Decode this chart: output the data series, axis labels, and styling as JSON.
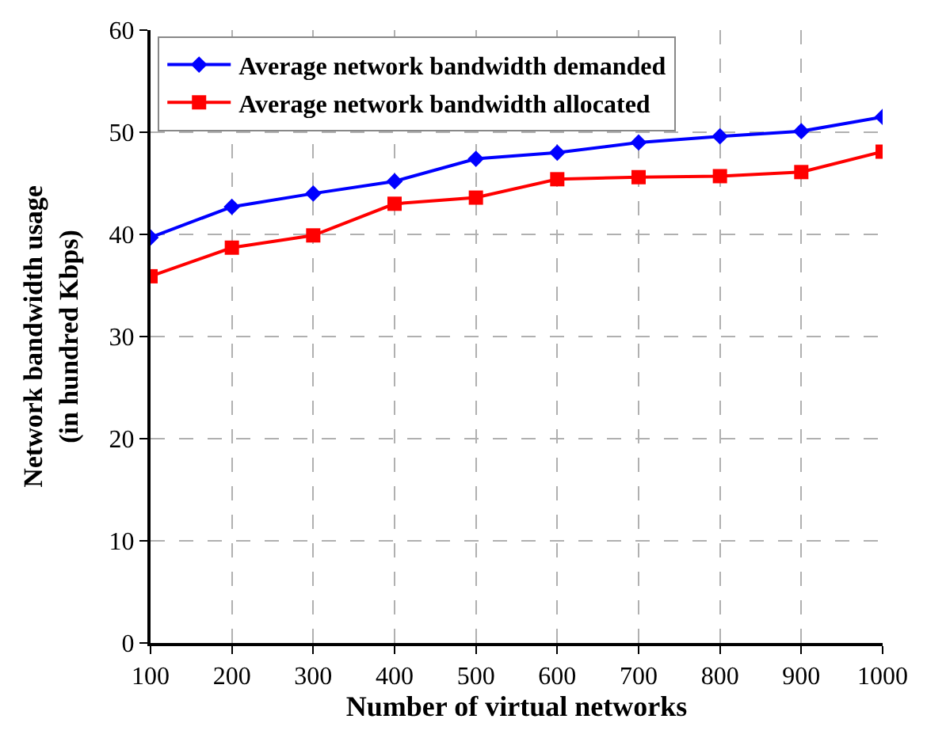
{
  "chart_data": {
    "type": "line",
    "xlabel": "Number of virtual networks",
    "ylabel": "Network bandwidth usage\n(in hundred Kbps)",
    "x": [
      100,
      200,
      300,
      400,
      500,
      600,
      700,
      800,
      900,
      1000
    ],
    "series": [
      {
        "name": "Average network bandwidth demanded",
        "color": "#0000ff",
        "marker": "diamond",
        "values": [
          39.7,
          42.7,
          44.0,
          45.2,
          47.4,
          48.0,
          49.0,
          49.6,
          50.1,
          51.5
        ]
      },
      {
        "name": "Average network bandwidth allocated",
        "color": "#ff0000",
        "marker": "square",
        "values": [
          35.9,
          38.7,
          39.9,
          43.0,
          43.6,
          45.4,
          45.6,
          45.7,
          46.1,
          48.1
        ]
      }
    ],
    "xlim": [
      100,
      1000
    ],
    "xticks": [
      100,
      200,
      300,
      400,
      500,
      600,
      700,
      800,
      900,
      1000
    ],
    "ylim": [
      0,
      60
    ],
    "yticks": [
      0,
      10,
      20,
      30,
      40,
      50,
      60
    ],
    "grid": true,
    "legend": "top left",
    "line_style": "solid"
  }
}
